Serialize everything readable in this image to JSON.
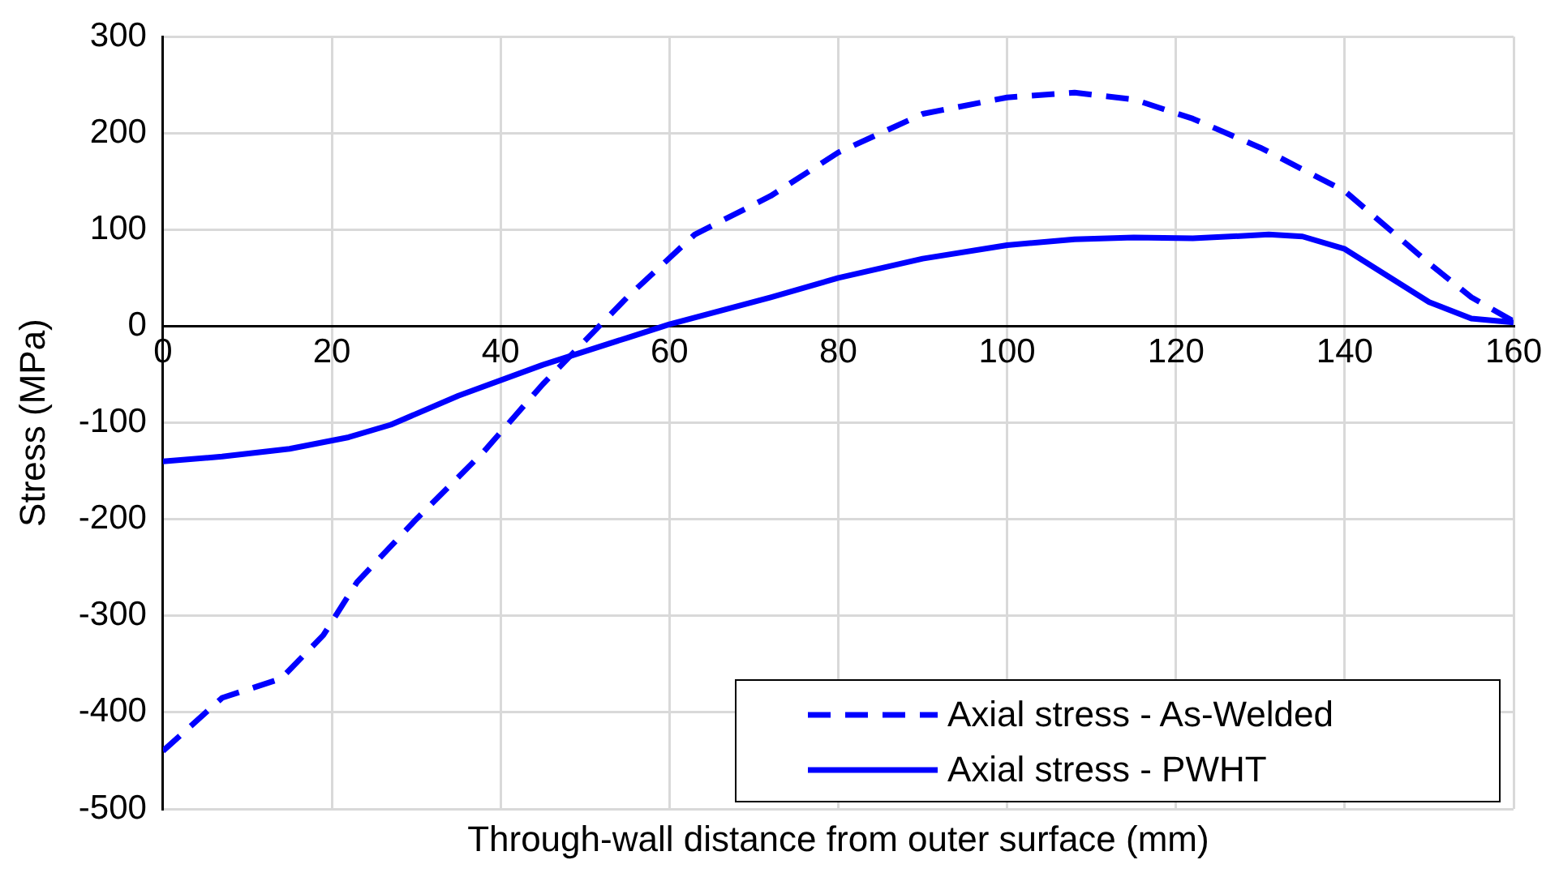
{
  "chart_data": {
    "type": "line",
    "xlabel": "Through-wall distance from outer surface (mm)",
    "ylabel": "Stress (MPa)",
    "xlim": [
      0,
      160
    ],
    "xticks": [
      0,
      20,
      40,
      60,
      80,
      100,
      120,
      140,
      160
    ],
    "ylim": [
      -500,
      300
    ],
    "yticks": [
      -500,
      -400,
      -300,
      -200,
      -100,
      0,
      100,
      200,
      300
    ],
    "grid": true,
    "legend": "bottom right",
    "marker": "none",
    "series": [
      {
        "name": "Axial stress - As-Welded",
        "color": "#0000ff",
        "line_style": "dashed",
        "x": [
          0,
          7,
          14,
          19,
          23,
          30,
          38,
          45,
          50,
          55,
          63,
          72,
          80,
          90,
          100,
          108,
          115,
          122,
          130,
          140,
          150,
          155,
          160
        ],
        "values": [
          -440,
          -385,
          -365,
          -320,
          -265,
          -200,
          -130,
          -60,
          -15,
          30,
          95,
          135,
          180,
          220,
          237,
          242,
          235,
          215,
          185,
          140,
          65,
          30,
          5
        ]
      },
      {
        "name": "Axial stress - PWHT",
        "color": "#0000ff",
        "line_style": "solid",
        "x": [
          0,
          7,
          15,
          22,
          27,
          35,
          45,
          55,
          60,
          72,
          80,
          90,
          100,
          108,
          115,
          122,
          131,
          135,
          140,
          150,
          155,
          160
        ],
        "values": [
          -140,
          -135,
          -127,
          -115,
          -102,
          -72,
          -40,
          -12,
          2,
          30,
          50,
          70,
          84,
          90,
          92,
          91,
          95,
          93,
          80,
          25,
          8,
          4
        ]
      }
    ]
  }
}
